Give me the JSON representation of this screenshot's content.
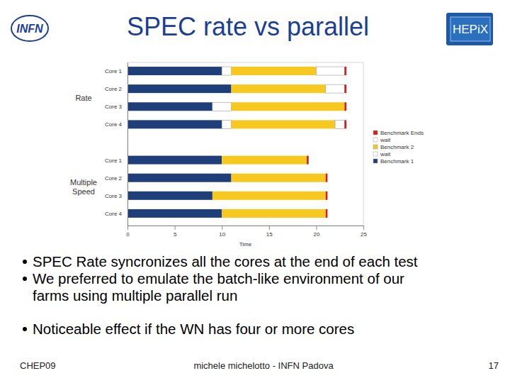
{
  "slide": {
    "title": "SPEC rate vs parallel",
    "logo_left": "INFN",
    "logo_right": "HEPiX",
    "bullets": [
      [
        "SPEC Rate syncronizes all the cores at the end of each test"
      ],
      [
        "We preferred to emulate the batch-like environment of our",
        "farms using multiple parallel run"
      ],
      [
        "Noticeable effect if the WN has four or more cores"
      ]
    ],
    "footer_left": "CHEP09",
    "footer_center": "michele michelotto - INFN Padova",
    "page_number": "17"
  },
  "chart_data": {
    "type": "bar",
    "orientation": "horizontal",
    "stacked": true,
    "categories": [
      "Core 1",
      "Core 2",
      "Core 3",
      "Core 4",
      "Core 1",
      "Core 2",
      "Core 3",
      "Core 4"
    ],
    "group_labels": [
      "Rate",
      "Multiple Speed"
    ],
    "x_label": "Time",
    "xlim": [
      0,
      25
    ],
    "xticks": [
      0,
      5,
      10,
      15,
      20,
      25
    ],
    "grid": false,
    "legend": "right",
    "series": [
      {
        "name": "Benchmark 1",
        "color": "#1f3f7a",
        "values": [
          10,
          11,
          9,
          10,
          10,
          11,
          9,
          10
        ]
      },
      {
        "name": "wait",
        "color": "#ffffff",
        "values": [
          1,
          0,
          2,
          1,
          0,
          0,
          0,
          0
        ]
      },
      {
        "name": "Benchmark 2",
        "color": "#f7c820",
        "values": [
          9,
          10,
          12,
          11,
          9,
          10,
          12,
          11
        ]
      },
      {
        "name": "wait",
        "color": "#ffffff",
        "values": [
          3,
          2,
          0,
          1,
          0,
          0,
          0,
          0
        ]
      },
      {
        "name": "Benchmark Ends",
        "color": "#d42020",
        "values": [
          0.2,
          0.2,
          0.2,
          0.2,
          0.2,
          0.2,
          0.2,
          0.2
        ]
      }
    ]
  }
}
